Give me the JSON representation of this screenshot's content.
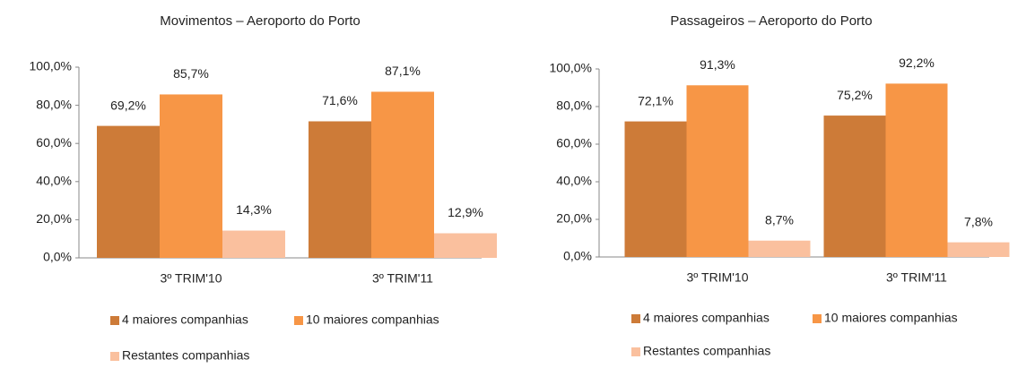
{
  "chart_data": [
    {
      "type": "bar",
      "title": "Movimentos – Aeroporto do Porto",
      "categories": [
        "3º TRIM'10",
        "3º TRIM'11"
      ],
      "series": [
        {
          "name": "4 maiores companhias",
          "color": "#cd7b38",
          "values": [
            69.2,
            71.6
          ],
          "value_labels": [
            "69,2%",
            "71,6%"
          ]
        },
        {
          "name": "10 maiores companhias",
          "color": "#f79646",
          "values": [
            85.7,
            87.1
          ],
          "value_labels": [
            "85,7%",
            "87,1%"
          ]
        },
        {
          "name": "Restantes companhias",
          "color": "#fac09e",
          "values": [
            14.3,
            12.9
          ],
          "value_labels": [
            "14,3%",
            "12,9%"
          ]
        }
      ],
      "ylim": [
        0,
        100
      ],
      "yticks": [
        {
          "value": 0,
          "label": "0,0%"
        },
        {
          "value": 20,
          "label": "20,0%"
        },
        {
          "value": 40,
          "label": "40,0%"
        },
        {
          "value": 60,
          "label": "60,0%"
        },
        {
          "value": 80,
          "label": "80,0%"
        },
        {
          "value": 100,
          "label": "100,0%"
        }
      ]
    },
    {
      "type": "bar",
      "title": "Passageiros – Aeroporto do Porto",
      "categories": [
        "3º TRIM'10",
        "3º TRIM'11"
      ],
      "series": [
        {
          "name": "4 maiores companhias",
          "color": "#cd7b38",
          "values": [
            72.1,
            75.2
          ],
          "value_labels": [
            "72,1%",
            "75,2%"
          ]
        },
        {
          "name": "10 maiores companhias",
          "color": "#f79646",
          "values": [
            91.3,
            92.2
          ],
          "value_labels": [
            "91,3%",
            "92,2%"
          ]
        },
        {
          "name": "Restantes companhias",
          "color": "#fac09e",
          "values": [
            8.7,
            7.8
          ],
          "value_labels": [
            "8,7%",
            "7,8%"
          ]
        }
      ],
      "ylim": [
        0,
        100
      ],
      "yticks": [
        {
          "value": 0,
          "label": "0,0%"
        },
        {
          "value": 20,
          "label": "20,0%"
        },
        {
          "value": 40,
          "label": "40,0%"
        },
        {
          "value": 60,
          "label": "60,0%"
        },
        {
          "value": 80,
          "label": "80,0%"
        },
        {
          "value": 100,
          "label": "100,0%"
        }
      ]
    }
  ]
}
